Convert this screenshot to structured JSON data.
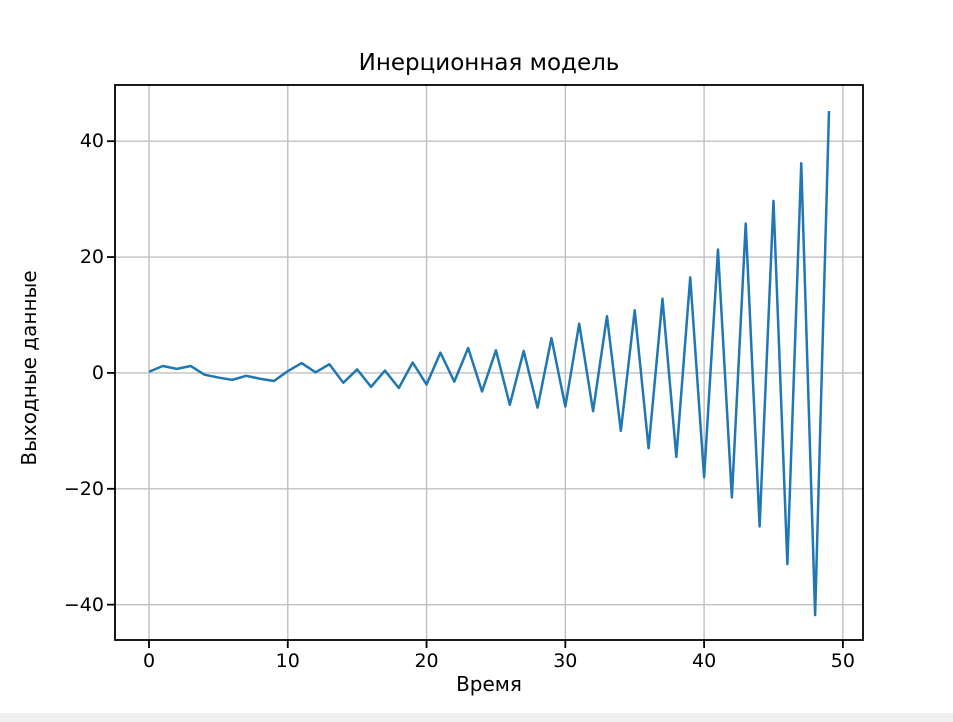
{
  "page": {
    "background": "#ffffff",
    "taskbar_color": "#f0f0f0"
  },
  "chart_data": {
    "type": "line",
    "title": "Инерционная модель",
    "xlabel": "Время",
    "ylabel": "Выходные данные",
    "x": [
      0,
      1,
      2,
      3,
      4,
      5,
      6,
      7,
      8,
      9,
      10,
      11,
      12,
      13,
      14,
      15,
      16,
      17,
      18,
      19,
      20,
      21,
      22,
      23,
      24,
      25,
      26,
      27,
      28,
      29,
      30,
      31,
      32,
      33,
      34,
      35,
      36,
      37,
      38,
      39,
      40,
      41,
      42,
      43,
      44,
      45,
      46,
      47,
      48,
      49
    ],
    "values": [
      0.2,
      1.2,
      0.7,
      1.2,
      -0.3,
      -0.8,
      -1.2,
      -0.5,
      -1.0,
      -1.4,
      0.3,
      1.7,
      0.1,
      1.5,
      -1.7,
      0.6,
      -2.4,
      0.4,
      -2.6,
      1.8,
      -2.0,
      3.5,
      -1.5,
      4.3,
      -3.2,
      3.9,
      -5.5,
      3.8,
      -6.0,
      6.0,
      -5.8,
      8.5,
      -6.6,
      9.8,
      -10.0,
      10.8,
      -13.0,
      12.8,
      -14.5,
      16.5,
      -18.0,
      21.3,
      -21.5,
      25.8,
      -26.5,
      29.7,
      -33.0,
      36.2,
      -41.8,
      45.2
    ],
    "xticks": [
      0,
      10,
      20,
      30,
      40,
      50
    ],
    "yticks": [
      -40,
      -20,
      0,
      20,
      40
    ],
    "xlim": [
      -2.45,
      51.45
    ],
    "ylim": [
      -46.1,
      49.7
    ],
    "grid": true,
    "legend": null,
    "line_color": "#1f77b4",
    "line_width": 2.5,
    "grid_color": "#c0c0c0",
    "spine_color": "#000000",
    "tick_color": "#000000"
  }
}
